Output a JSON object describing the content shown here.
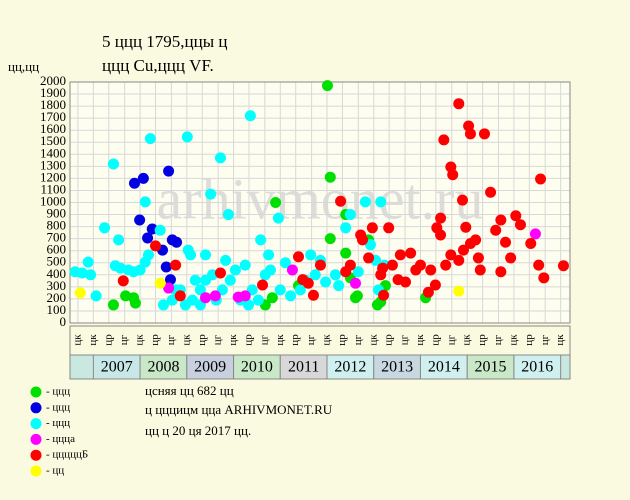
{
  "chart_data": {
    "type": "scatter",
    "title": "5 ццц 1795,ццы ц",
    "subtitle": "ццц Cu,ццц VF.",
    "y_label": "цц,цц",
    "watermark": "arhivmonet.ru",
    "annotations": [
      "цcняя цц 682 цц",
      "ц цццицм цца ARHIVMONET.RU",
      "цц ц 20 ця 2017 цц."
    ],
    "xlim": [
      2006.5,
      2017.2
    ],
    "ylim": [
      0,
      2000
    ],
    "yticks": [
      0,
      100,
      200,
      300,
      400,
      500,
      600,
      700,
      800,
      900,
      1000,
      1100,
      1200,
      1300,
      1400,
      1500,
      1600,
      1700,
      1800,
      1900,
      2000
    ],
    "xticks": [
      {
        "value": 2006.67,
        "label": "цк"
      },
      {
        "value": 2007.0,
        "label": "цк"
      },
      {
        "value": 2007.33,
        "label": "цр"
      },
      {
        "value": 2007.67,
        "label": "цг"
      },
      {
        "value": 2008.0,
        "label": "цк"
      },
      {
        "value": 2008.33,
        "label": "цр"
      },
      {
        "value": 2008.67,
        "label": "цг"
      },
      {
        "value": 2009.0,
        "label": "цк"
      },
      {
        "value": 2009.33,
        "label": "цр"
      },
      {
        "value": 2009.67,
        "label": "цг"
      },
      {
        "value": 2010.0,
        "label": "цк"
      },
      {
        "value": 2010.33,
        "label": "цр"
      },
      {
        "value": 2010.67,
        "label": "цг"
      },
      {
        "value": 2011.0,
        "label": "цк"
      },
      {
        "value": 2011.33,
        "label": "цр"
      },
      {
        "value": 2011.67,
        "label": "цг"
      },
      {
        "value": 2012.0,
        "label": "цк"
      },
      {
        "value": 2012.33,
        "label": "цр"
      },
      {
        "value": 2012.67,
        "label": "цг"
      },
      {
        "value": 2013.0,
        "label": "цк"
      },
      {
        "value": 2013.33,
        "label": "цр"
      },
      {
        "value": 2013.67,
        "label": "цг"
      },
      {
        "value": 2014.0,
        "label": "цк"
      },
      {
        "value": 2014.33,
        "label": "цр"
      },
      {
        "value": 2014.67,
        "label": "цг"
      },
      {
        "value": 2015.0,
        "label": "цк"
      },
      {
        "value": 2015.33,
        "label": "цр"
      },
      {
        "value": 2015.67,
        "label": "цг"
      },
      {
        "value": 2016.0,
        "label": "цк"
      },
      {
        "value": 2016.33,
        "label": "цр"
      },
      {
        "value": 2016.67,
        "label": "цг"
      },
      {
        "value": 2017.0,
        "label": "цк"
      }
    ],
    "years": [
      2007,
      2008,
      2009,
      2010,
      2011,
      2012,
      2013,
      2014,
      2015,
      2016
    ],
    "grid": true,
    "series": [
      {
        "name": "- ццц",
        "color": "#00e000",
        "x": [
          2007.43,
          2007.69,
          2007.86,
          2007.9,
          2010.9,
          2010.68,
          2010.83,
          2011.39,
          2012.01,
          2012.07,
          2012.07,
          2012.4,
          2012.4,
          2012.5,
          2012.61,
          2012.65,
          2013.08,
          2013.15,
          2013.25,
          2014.11,
          2012.89
        ],
        "values": [
          150,
          225,
          210,
          165,
          1000,
          150,
          210,
          310,
          1970,
          1210,
          700,
          900,
          580,
          375,
          210,
          225,
          150,
          175,
          310,
          210,
          690
        ]
      },
      {
        "name": "- ццц",
        "color": "#0000e0",
        "x": [
          2007.88,
          2008.07,
          2008.61,
          2007.99,
          2008.16,
          2008.26,
          2008.69,
          2008.78,
          2008.56,
          2008.65,
          2008.48
        ],
        "values": [
          1160,
          1200,
          1260,
          855,
          705,
          780,
          690,
          670,
          465,
          360,
          605
        ]
      },
      {
        "name": "- ццц",
        "color": "#00ffff",
        "x": [
          2006.61,
          2006.76,
          2006.89,
          2006.94,
          2007.06,
          2007.24,
          2007.43,
          2007.54,
          2007.47,
          2007.58,
          2007.75,
          2007.86,
          2008.11,
          2008.22,
          2008.11,
          2008.18,
          2009.01,
          2009.08,
          2009.18,
          2009.29,
          2009.51,
          2009.72,
          2009.89,
          2010.36,
          2010.58,
          2010.79,
          2010.96,
          2011.11,
          2011.43,
          2011.65,
          2011.86,
          2012.25,
          2012.4,
          2012.5,
          2012.67,
          2012.82,
          2012.93,
          2013.04,
          2013.15,
          2013.1,
          2013.23,
          2008.86,
          2008.97,
          2009.12,
          2009.29,
          2009.4,
          2009.55,
          2009.63,
          2009.76,
          2009.93,
          2010.04,
          2010.15,
          2010.32,
          2010.4,
          2010.53,
          2010.68,
          2010.75,
          2011.0,
          2011.22,
          2011.54,
          2011.75,
          2011.97,
          2012.18,
          2009.03,
          2009.4,
          2009.83,
          2010.25,
          2008.76,
          2008.69,
          2008.5,
          2008.0,
          2008.43
        ],
        "values": [
          425,
          415,
          505,
          400,
          225,
          790,
          1320,
          690,
          475,
          455,
          440,
          425,
          1005,
          1530,
          505,
          565,
          1545,
          565,
          355,
          275,
          1070,
          1370,
          900,
          1720,
          690,
          440,
          870,
          500,
          275,
          565,
          520,
          310,
          790,
          900,
          425,
          1005,
          650,
          520,
          1005,
          275,
          480,
          275,
          150,
          190,
          150,
          355,
          400,
          190,
          275,
          355,
          440,
          190,
          150,
          275,
          190,
          400,
          565,
          275,
          225,
          355,
          400,
          340,
          400,
          605,
          565,
          520,
          480,
          275,
          190,
          150,
          440,
          770
        ]
      },
      {
        "name": "- ццца",
        "color": "#ff00ff",
        "x": [
          2008.61,
          2009.4,
          2009.61,
          2010.1,
          2010.25,
          2011.26,
          2012.61,
          2016.46
        ],
        "values": [
          290,
          210,
          225,
          215,
          225,
          440,
          330,
          740
        ]
      },
      {
        "name": "- цццццБ",
        "color": "#ff0000",
        "x": [
          2007.64,
          2008.33,
          2008.76,
          2008.86,
          2009.72,
          2010.62,
          2011.39,
          2011.48,
          2011.6,
          2011.71,
          2011.86,
          2012.29,
          2012.4,
          2012.5,
          2012.72,
          2012.76,
          2012.89,
          2012.97,
          2013.19,
          2013.21,
          2013.32,
          2013.57,
          2013.68,
          2013.79,
          2013.9,
          2014.0,
          2014.17,
          2014.22,
          2014.35,
          2014.43,
          2014.5,
          2014.65,
          2014.69,
          2014.82,
          2014.9,
          2014.97,
          2015.03,
          2015.07,
          2015.18,
          2015.24,
          2015.37,
          2015.5,
          2015.61,
          2015.72,
          2015.82,
          2015.93,
          2016.04,
          2016.36,
          2016.57,
          2016.64,
          2017.06,
          2014.82,
          2014.92,
          2015.07,
          2014.54,
          2014.32,
          2013.52,
          2013.4,
          2013.15,
          2014.43,
          2014.65,
          2015.28,
          2015.72,
          2016.14,
          2016.53
        ],
        "values": [
          350,
          640,
          480,
          225,
          415,
          315,
          550,
          360,
          330,
          230,
          480,
          1010,
          425,
          480,
          730,
          690,
          540,
          790,
          455,
          230,
          790,
          565,
          340,
          580,
          440,
          480,
          255,
          440,
          790,
          870,
          1520,
          1295,
          1230,
          1820,
          1020,
          795,
          1635,
          1570,
          690,
          540,
          1570,
          1085,
          770,
          855,
          670,
          540,
          890,
          660,
          1195,
          375,
          475,
          520,
          605,
          660,
          480,
          315,
          360,
          480,
          400,
          730,
          565,
          440,
          425,
          815,
          480
        ]
      },
      {
        "name": "- цц",
        "color": "#ffff00",
        "x": [
          2006.72,
          2008.43,
          2014.82
        ],
        "values": [
          250,
          330,
          265
        ]
      }
    ]
  }
}
